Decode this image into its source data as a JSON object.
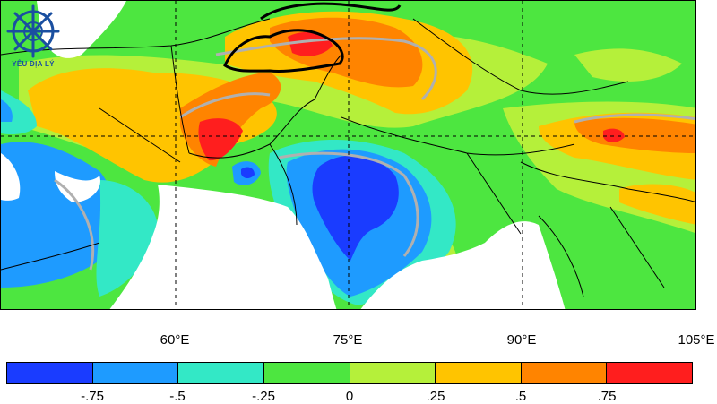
{
  "map": {
    "longitude_labels": [
      "60°E",
      "75°E",
      "90°E",
      "105°E"
    ],
    "longitude_values": [
      60,
      75,
      90,
      105
    ],
    "longitude_range": [
      45,
      105
    ],
    "latitude_range": [
      5,
      45
    ]
  },
  "colorbar": {
    "colors": [
      "#1a3cff",
      "#1e9bff",
      "#33e8c6",
      "#4de640",
      "#b5f03a",
      "#ffc400",
      "#ff8400",
      "#ff1e1e"
    ],
    "tick_labels": [
      "-.75",
      "-.5",
      "-.25",
      "0",
      ".25",
      ".5",
      ".75"
    ]
  },
  "logo": {
    "text": "YÊU ĐỊA LÝ"
  }
}
